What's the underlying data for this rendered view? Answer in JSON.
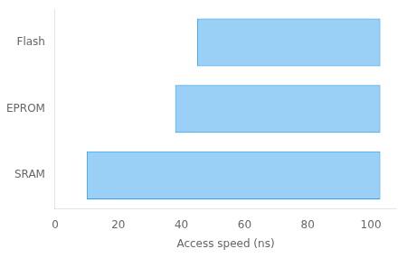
{
  "chart_data": {
    "type": "bar",
    "orientation": "horizontal",
    "categories": [
      "SRAM",
      "EPROM",
      "Flash"
    ],
    "values": [
      [
        10,
        103
      ],
      [
        38,
        103
      ],
      [
        45,
        103
      ]
    ],
    "xlabel": "Access speed (ns)",
    "xlim": [
      0,
      108
    ],
    "xticks": [
      0,
      20,
      40,
      60,
      80,
      100
    ],
    "grid": false
  }
}
